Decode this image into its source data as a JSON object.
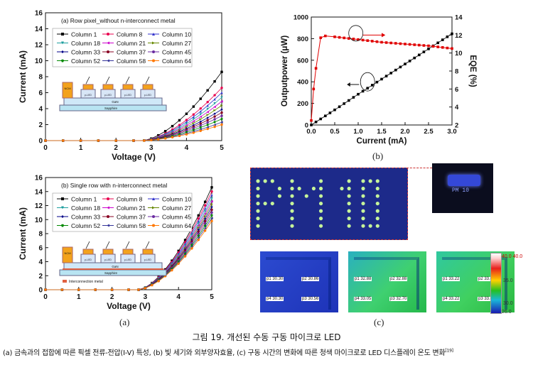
{
  "figure": {
    "caption_title": "그림 19. 개선된 수동 구동 마이크로 LED",
    "caption_body": "(a) 금속과의 접합에 따른 픽셀 전류-전압(I-V) 특성, (b) 빛 세기와 외부양자효율, (c) 구동 시간의 변화에 따른 청색 마이크로로 LED 디스플레이 온도 변화",
    "caption_ref": "[19]",
    "panel_a": "(a)",
    "panel_b": "(b)",
    "panel_c": "(c)"
  },
  "chart_data": [
    {
      "type": "line",
      "title": "(a) Row pixel_without n-interconnect metal",
      "xlabel": "Voltage (V)",
      "ylabel": "Current (mA)",
      "xlim": [
        0,
        5
      ],
      "ylim": [
        0,
        16
      ],
      "xticks": [
        "0",
        "1",
        "2",
        "3",
        "4",
        "5"
      ],
      "yticks": [
        "0",
        "2",
        "4",
        "6",
        "8",
        "10",
        "12",
        "14",
        "16"
      ],
      "legend_position": "top-left",
      "series": [
        {
          "name": "Column 1",
          "color": "#000000",
          "marker": "square",
          "max": 8.6
        },
        {
          "name": "Column 8",
          "color": "#e8004e",
          "marker": "circle",
          "max": 6.6
        },
        {
          "name": "Column 10",
          "color": "#3333cc",
          "marker": "triangle-up",
          "max": 6.0
        },
        {
          "name": "Column 18",
          "color": "#1e9e9e",
          "marker": "triangle-down",
          "max": 5.4
        },
        {
          "name": "Column 21",
          "color": "#cc00cc",
          "marker": "triangle-left",
          "max": 4.9
        },
        {
          "name": "Column 27",
          "color": "#668800",
          "marker": "triangle-right",
          "max": 4.4
        },
        {
          "name": "Column 33",
          "color": "#000088",
          "marker": "diamond",
          "max": 3.9
        },
        {
          "name": "Column 37",
          "color": "#880022",
          "marker": "hexagon",
          "max": 3.5
        },
        {
          "name": "Column 45",
          "color": "#6a2aa0",
          "marker": "star",
          "max": 3.1
        },
        {
          "name": "Column 52",
          "color": "#008800",
          "marker": "pentagon",
          "max": 2.7
        },
        {
          "name": "Column 58",
          "color": "#333399",
          "marker": "triangle-left",
          "max": 2.3
        },
        {
          "name": "Column 64",
          "color": "#ff7700",
          "marker": "circle",
          "max": 2.0
        }
      ],
      "inset": {
        "metal": "NCM",
        "layer": "GaN",
        "substrate": "Sapphire",
        "pixel": "p-LED"
      }
    },
    {
      "type": "line",
      "title": "(b) Single row with n-interconnect metal",
      "xlabel": "Voltage (V)",
      "ylabel": "Current (mA)",
      "xlim": [
        0,
        5
      ],
      "ylim": [
        0,
        16
      ],
      "xticks": [
        "0",
        "1",
        "2",
        "3",
        "4",
        "5"
      ],
      "yticks": [
        "0",
        "2",
        "4",
        "6",
        "8",
        "10",
        "12",
        "14",
        "16"
      ],
      "legend_position": "top-left",
      "series": [
        {
          "name": "Column 1",
          "color": "#000000",
          "marker": "square",
          "max": 14.6
        },
        {
          "name": "Column 8",
          "color": "#e8004e",
          "marker": "circle",
          "max": 14.0
        },
        {
          "name": "Column 10",
          "color": "#3333cc",
          "marker": "triangle-up",
          "max": 13.5
        },
        {
          "name": "Column 18",
          "color": "#1e9e9e",
          "marker": "triangle-down",
          "max": 13.0
        },
        {
          "name": "Column 21",
          "color": "#cc00cc",
          "marker": "triangle-left",
          "max": 12.6
        },
        {
          "name": "Column 27",
          "color": "#668800",
          "marker": "triangle-right",
          "max": 12.2
        },
        {
          "name": "Column 33",
          "color": "#000088",
          "marker": "diamond",
          "max": 11.8
        },
        {
          "name": "Column 37",
          "color": "#880022",
          "marker": "hexagon",
          "max": 11.4
        },
        {
          "name": "Column 45",
          "color": "#6a2aa0",
          "marker": "star",
          "max": 11.0
        },
        {
          "name": "Column 52",
          "color": "#008800",
          "marker": "pentagon",
          "max": 10.6
        },
        {
          "name": "Column 58",
          "color": "#333399",
          "marker": "triangle-left",
          "max": 10.2
        },
        {
          "name": "Column 64",
          "color": "#ff7700",
          "marker": "circle",
          "max": 9.8
        }
      ],
      "inset": {
        "metal": "NCM",
        "layer": "GaN",
        "substrate": "Sapphire",
        "pixel": "p-LED",
        "legend": "Interconnection metal"
      }
    },
    {
      "type": "line",
      "xlabel": "Current (mA)",
      "ylabel": "Outputpower (μW)",
      "y2label": "EQE (%)",
      "xlim": [
        0,
        3.0
      ],
      "ylim": [
        0,
        1000
      ],
      "y2lim": [
        2,
        14
      ],
      "xticks": [
        "0.0",
        "0.5",
        "1.0",
        "1.5",
        "2.0",
        "2.5",
        "3.0"
      ],
      "yticks": [
        "0",
        "200",
        "400",
        "600",
        "800",
        "1000"
      ],
      "y2ticks": [
        "2",
        "4",
        "6",
        "8",
        "10",
        "12",
        "14"
      ],
      "series": [
        {
          "name": "Outputpower",
          "axis": "left",
          "color": "#000000",
          "marker": "square",
          "x": [
            0.0,
            0.5,
            1.0,
            1.5,
            2.0,
            2.5,
            3.0
          ],
          "y": [
            0,
            140,
            285,
            425,
            565,
            705,
            845
          ]
        },
        {
          "name": "EQE",
          "axis": "right",
          "color": "#e00000",
          "marker": "square",
          "x": [
            0.0,
            0.05,
            0.1,
            0.2,
            0.3,
            0.5,
            1.0,
            1.5,
            2.0,
            2.5,
            3.0
          ],
          "y": [
            2.5,
            6.0,
            8.3,
            11.7,
            11.9,
            11.8,
            11.5,
            11.2,
            11.0,
            10.8,
            10.5
          ]
        }
      ]
    }
  ],
  "panel_c": {
    "led_text": "PM 10",
    "scale_max": "40.0 40.0",
    "scale_mid": "35.0",
    "scale_low": "30.0",
    "scale_min": "26.0",
    "thermal": [
      {
        "p1": "p1  30.30",
        "p2": "p2  30.86",
        "p3": "p4  30.30",
        "p4": "p3  30.56"
      },
      {
        "p1": "p1  32.88",
        "p2": "p2  32.88",
        "p3": "p4  33.05",
        "p4": "p3  32.70"
      },
      {
        "p1": "p1  33.22",
        "p2": "p2  33.05",
        "p3": "p4  33.22",
        "p4": "p3  33.05"
      }
    ]
  }
}
